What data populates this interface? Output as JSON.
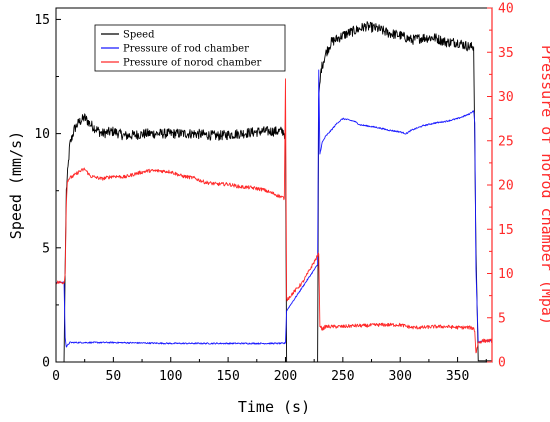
{
  "colors": {
    "speed": "#000000",
    "rod": "#1a1aff",
    "norod": "#ff2a2a",
    "axis_left": "#000000",
    "axis_right": "#ff2a2a"
  },
  "chart_data": {
    "type": "line",
    "xlabel": "Time (s)",
    "ylabel_left": "Speed (mm/s)",
    "ylabel_right": "Pressure of norod chamber (Mpa)",
    "xlim": [
      0,
      380
    ],
    "ylim_left": [
      0,
      15.5
    ],
    "ylim_right": [
      0,
      40
    ],
    "x_ticks": [
      0,
      50,
      100,
      150,
      200,
      250,
      300,
      350
    ],
    "y_left_ticks": [
      0,
      5,
      10,
      15
    ],
    "y_right_ticks": [
      0,
      5,
      10,
      15,
      20,
      25,
      30,
      35,
      40
    ],
    "grid": false,
    "legend_position": "top-left",
    "legend": [
      "Speed",
      "Pressure of rod chamber",
      "Pressure of norod chamber"
    ],
    "series": [
      {
        "name": "Speed",
        "axis": "left",
        "noise": 0.22,
        "x": [
          0,
          7,
          8,
          9,
          12,
          16,
          20,
          25,
          30,
          40,
          50,
          60,
          80,
          100,
          120,
          140,
          160,
          180,
          198,
          200,
          201,
          228,
          229,
          231,
          235,
          240,
          250,
          260,
          270,
          280,
          290,
          300,
          310,
          320,
          330,
          340,
          350,
          360,
          364,
          366,
          368,
          372,
          380
        ],
        "y": [
          0,
          0,
          4.2,
          7.5,
          9.5,
          10.2,
          10.5,
          10.7,
          10.4,
          10.0,
          10.1,
          9.9,
          10.0,
          10.0,
          10.0,
          9.9,
          10.0,
          10.1,
          10.1,
          9.9,
          0,
          0,
          11.5,
          12.8,
          13.5,
          14.0,
          14.3,
          14.5,
          14.7,
          14.6,
          14.4,
          14.3,
          14.1,
          14.2,
          14.2,
          14.0,
          14.0,
          13.8,
          13.8,
          5.0,
          0.05,
          0.05,
          0.05
        ]
      },
      {
        "name": "Pressure of rod chamber",
        "axis": "right",
        "noise": 0.08,
        "x": [
          0,
          7,
          8,
          9,
          12,
          20,
          50,
          100,
          150,
          199,
          200,
          201,
          215,
          228,
          229,
          230,
          232,
          235,
          240,
          245,
          250,
          260,
          265,
          270,
          280,
          290,
          300,
          305,
          310,
          320,
          330,
          340,
          350,
          360,
          364,
          365,
          366,
          368,
          372,
          380
        ],
        "y": [
          9.0,
          9.0,
          2.8,
          1.7,
          2.2,
          2.2,
          2.2,
          2.1,
          2.1,
          2.1,
          2.2,
          5.8,
          8.5,
          11.0,
          33.0,
          23.5,
          24.8,
          25.5,
          26.2,
          27.0,
          27.5,
          27.2,
          26.8,
          26.7,
          26.5,
          26.2,
          26.0,
          25.8,
          26.2,
          26.7,
          27.0,
          27.2,
          27.5,
          28.0,
          28.4,
          27.0,
          10.5,
          2.2,
          2.4,
          2.4
        ]
      },
      {
        "name": "Pressure of norod chamber",
        "axis": "right",
        "noise": 0.2,
        "x": [
          0,
          7,
          8,
          9,
          10,
          12,
          15,
          20,
          25,
          30,
          40,
          50,
          60,
          70,
          80,
          90,
          100,
          110,
          120,
          130,
          140,
          150,
          160,
          170,
          180,
          190,
          199,
          200,
          201,
          215,
          228,
          229,
          230,
          232,
          235,
          240,
          250,
          260,
          270,
          280,
          290,
          300,
          310,
          320,
          330,
          340,
          350,
          360,
          364,
          365,
          366,
          368,
          372,
          380
        ],
        "y": [
          9.0,
          9.0,
          10.0,
          18.0,
          20.5,
          20.8,
          21.0,
          21.5,
          21.8,
          21.0,
          20.7,
          21.0,
          20.9,
          21.3,
          21.6,
          21.6,
          21.5,
          21.0,
          20.8,
          20.3,
          20.1,
          20.1,
          19.8,
          19.7,
          19.5,
          19.0,
          18.5,
          32.0,
          7.0,
          9.0,
          12.0,
          12.2,
          4.2,
          3.7,
          4.0,
          4.0,
          4.0,
          4.1,
          4.1,
          4.2,
          4.2,
          4.2,
          3.9,
          3.9,
          4.0,
          4.0,
          3.9,
          3.9,
          3.8,
          3.5,
          1.0,
          2.2,
          2.4,
          2.4
        ]
      }
    ]
  }
}
